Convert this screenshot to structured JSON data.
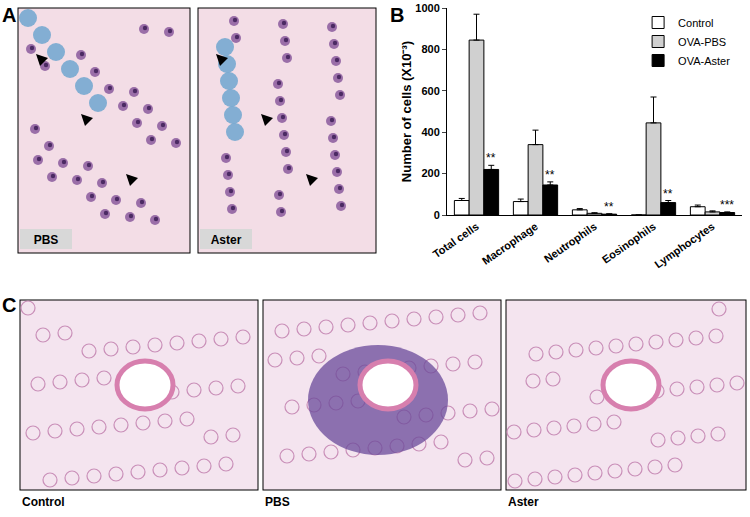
{
  "figure": {
    "panels": [
      {
        "label": "A",
        "images": [
          "PBS",
          "Aster"
        ]
      },
      {
        "label": "B"
      },
      {
        "label": "C",
        "images": [
          "Control",
          "PBS",
          "Aster"
        ]
      }
    ]
  },
  "chart_data": {
    "type": "bar",
    "y_label": "Number of cells (X10⁻³)",
    "categories": [
      "Total cells",
      "Macrophage",
      "Neutrophils",
      "Eosinophils",
      "Lymphocytes"
    ],
    "series": [
      {
        "name": "Control",
        "color": "#ffffff",
        "values": [
          70,
          65,
          25,
          0,
          40
        ],
        "errors": [
          10,
          12,
          6,
          0,
          8
        ]
      },
      {
        "name": "OVA-PBS",
        "color": "#d0d0d0",
        "values": [
          845,
          340,
          8,
          445,
          15
        ],
        "errors": [
          125,
          70,
          3,
          125,
          5
        ]
      },
      {
        "name": "OVA-Aster",
        "color": "#000000",
        "values": [
          220,
          145,
          4,
          60,
          12
        ],
        "errors": [
          20,
          15,
          2,
          10,
          3
        ]
      }
    ],
    "annotations": [
      {
        "category": "Total cells",
        "series": "OVA-Aster",
        "text": "**"
      },
      {
        "category": "Macrophage",
        "series": "OVA-Aster",
        "text": "**"
      },
      {
        "category": "Neutrophils",
        "series": "OVA-Aster",
        "text": "**"
      },
      {
        "category": "Eosinophils",
        "series": "OVA-Aster",
        "text": "**"
      },
      {
        "category": "Lymphocytes",
        "series": "OVA-Aster",
        "text": "***"
      }
    ],
    "ylim": [
      0,
      1000
    ],
    "yticks": [
      0,
      200,
      400,
      600,
      800,
      1000
    ],
    "grid": false,
    "legend": "upper right"
  }
}
